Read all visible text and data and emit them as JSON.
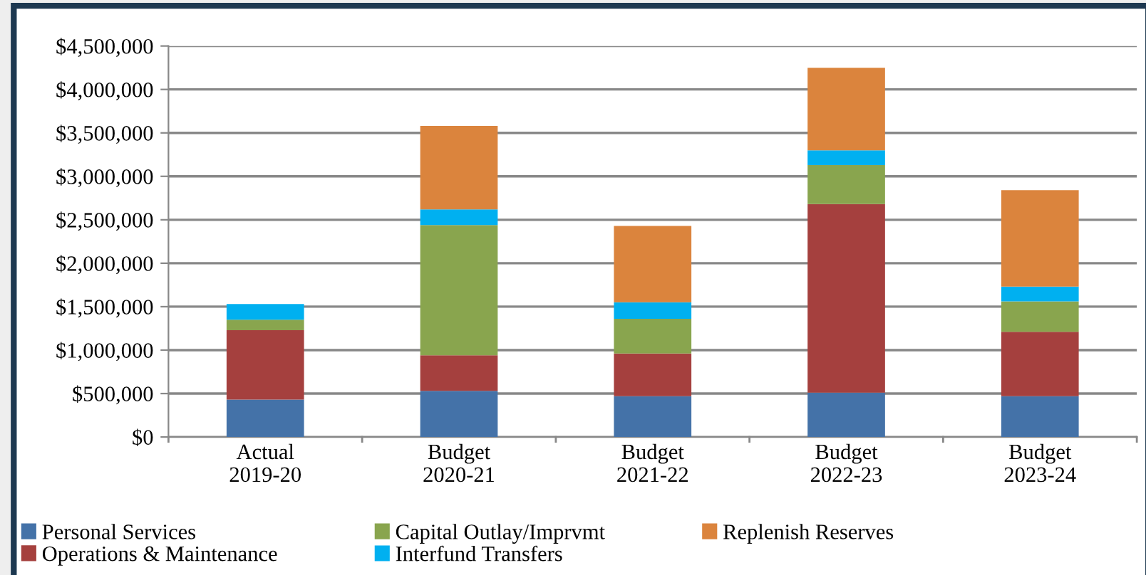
{
  "chart_data": {
    "type": "bar",
    "stacked": true,
    "categories": [
      "Actual\n2019-20",
      "Budget\n2020-21",
      "Budget\n2021-22",
      "Budget\n2022-23",
      "Budget\n2023-24"
    ],
    "series": [
      {
        "name": "Personal Services",
        "color": "#4472a8",
        "values": [
          430000,
          530000,
          470000,
          510000,
          470000
        ]
      },
      {
        "name": "Operations & Maintenance",
        "color": "#a5403e",
        "values": [
          800000,
          410000,
          490000,
          2170000,
          740000
        ]
      },
      {
        "name": "Capital Outlay/Imprvmt",
        "color": "#89a54e",
        "values": [
          120000,
          1500000,
          400000,
          450000,
          350000
        ]
      },
      {
        "name": "Interfund Transfers",
        "color": "#00b0f0",
        "values": [
          180000,
          180000,
          190000,
          170000,
          170000
        ]
      },
      {
        "name": "Replenish Reserves",
        "color": "#db843d",
        "values": [
          0,
          960000,
          880000,
          950000,
          1110000
        ]
      }
    ],
    "ylim": [
      0,
      4500000
    ],
    "yticks": [
      {
        "value": 0,
        "label": "$0"
      },
      {
        "value": 500000,
        "label": "$500,000"
      },
      {
        "value": 1000000,
        "label": "$1,000,000"
      },
      {
        "value": 1500000,
        "label": "$1,500,000"
      },
      {
        "value": 2000000,
        "label": "$2,000,000"
      },
      {
        "value": 2500000,
        "label": "$2,500,000"
      },
      {
        "value": 3000000,
        "label": "$3,000,000"
      },
      {
        "value": 3500000,
        "label": "$3,500,000"
      },
      {
        "value": 4000000,
        "label": "$4,000,000"
      },
      {
        "value": 4500000,
        "label": "$4,500,000"
      }
    ],
    "grid": "y",
    "legend": "bottom"
  }
}
